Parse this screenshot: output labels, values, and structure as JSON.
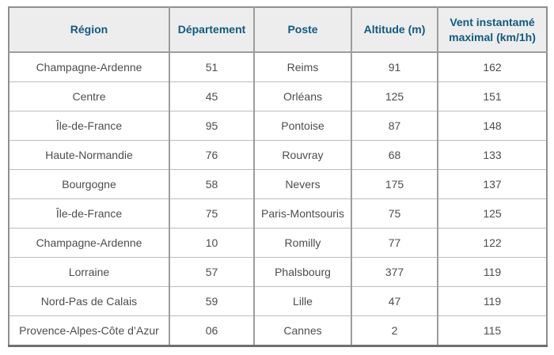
{
  "page": {
    "background": "#ffffff",
    "description": "Data table of maximum instantaneous wind speeds by French weather station"
  },
  "table": {
    "headers": [
      "Région",
      "Département",
      "Poste",
      "Altitude (m)",
      "Vent instantamé maximal (km/1h)"
    ],
    "rows": [
      [
        "Champagne-Ardenne",
        "51",
        "Reims",
        "91",
        "162"
      ],
      [
        "Centre",
        "45",
        "Orléans",
        "125",
        "151"
      ],
      [
        "Île-de-France",
        "95",
        "Pontoise",
        "87",
        "148"
      ],
      [
        "Haute-Normandie",
        "76",
        "Rouvray",
        "68",
        "133"
      ],
      [
        "Bourgogne",
        "58",
        "Nevers",
        "175",
        "137"
      ],
      [
        "Île-de-France",
        "75",
        "Paris-Montsouris",
        "75",
        "125"
      ],
      [
        "Champagne-Ardenne",
        "10",
        "Romilly",
        "77",
        "122"
      ],
      [
        "Lorraine",
        "57",
        "Phalsbourg",
        "377",
        "119"
      ],
      [
        "Nord-Pas de Calais",
        "59",
        "Lille",
        "47",
        "119"
      ],
      [
        "Provence-Alpes-Côte d’Azur",
        "06",
        "Cannes",
        "2",
        "115"
      ]
    ],
    "colors": {
      "header_text": "#115a80",
      "header_bg": "#ededed",
      "cell_text": "#4d4d4d",
      "grid_line": "#9d9d9d",
      "row_line": "#bcbcbc",
      "outer_border": "#8f8f8f",
      "outer_bottom_border": "#6f6f6f"
    },
    "column_count": 5,
    "row_count": 10
  }
}
